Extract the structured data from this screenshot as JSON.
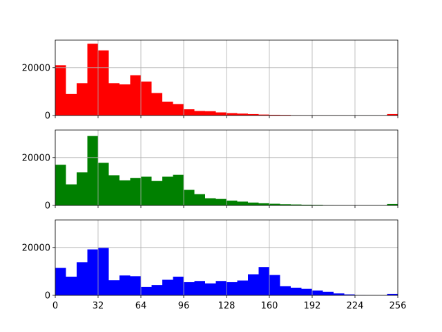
{
  "chart_data": [
    {
      "type": "bar",
      "title": "",
      "xlabel": "",
      "ylabel": "",
      "xlim": [
        0,
        256
      ],
      "ylim": [
        0,
        31500
      ],
      "grid": true,
      "xticks": [
        0,
        32,
        64,
        96,
        128,
        160,
        192,
        224,
        256
      ],
      "show_xtick_labels": false,
      "yticks": [
        0,
        20000
      ],
      "ytick_labels": [
        "0",
        "20000"
      ],
      "series": [
        {
          "color": "#ff0000",
          "bin_width": 8,
          "x": [
            0,
            8,
            16,
            24,
            32,
            40,
            48,
            56,
            64,
            72,
            80,
            88,
            96,
            104,
            112,
            120,
            128,
            136,
            144,
            152,
            160,
            168,
            176,
            184,
            192,
            200,
            208,
            216,
            224,
            232,
            240,
            248
          ],
          "values": [
            21000,
            9000,
            13500,
            30000,
            27200,
            13500,
            13000,
            16800,
            14200,
            9400,
            5800,
            4800,
            2600,
            1900,
            1800,
            1300,
            1000,
            800,
            600,
            400,
            300,
            250,
            150,
            100,
            100,
            80,
            80,
            50,
            50,
            50,
            50,
            600
          ]
        }
      ]
    },
    {
      "type": "bar",
      "title": "",
      "xlabel": "",
      "ylabel": "",
      "xlim": [
        0,
        256
      ],
      "ylim": [
        0,
        31500
      ],
      "grid": true,
      "xticks": [
        0,
        32,
        64,
        96,
        128,
        160,
        192,
        224,
        256
      ],
      "show_xtick_labels": false,
      "yticks": [
        0,
        20000
      ],
      "ytick_labels": [
        "0",
        "20000"
      ],
      "series": [
        {
          "color": "#008000",
          "bin_width": 8,
          "x": [
            0,
            8,
            16,
            24,
            32,
            40,
            48,
            56,
            64,
            72,
            80,
            88,
            96,
            104,
            112,
            120,
            128,
            136,
            144,
            152,
            160,
            168,
            176,
            184,
            192,
            200,
            208,
            216,
            224,
            232,
            240,
            248
          ],
          "values": [
            17000,
            8800,
            13800,
            29000,
            17800,
            12600,
            10500,
            11500,
            12000,
            10200,
            12000,
            12800,
            6500,
            4700,
            3000,
            2700,
            2000,
            1600,
            1200,
            900,
            700,
            500,
            400,
            300,
            250,
            150,
            100,
            80,
            60,
            60,
            60,
            600
          ]
        }
      ]
    },
    {
      "type": "bar",
      "title": "",
      "xlabel": "",
      "ylabel": "",
      "xlim": [
        0,
        256
      ],
      "ylim": [
        0,
        31500
      ],
      "grid": true,
      "xticks": [
        0,
        32,
        64,
        96,
        128,
        160,
        192,
        224,
        256
      ],
      "show_xtick_labels": true,
      "xtick_labels": [
        "0",
        "32",
        "64",
        "96",
        "128",
        "160",
        "192",
        "224",
        "256"
      ],
      "yticks": [
        0,
        20000
      ],
      "ytick_labels": [
        "0",
        "20000"
      ],
      "series": [
        {
          "color": "#0000ff",
          "bin_width": 8,
          "x": [
            0,
            8,
            16,
            24,
            32,
            40,
            48,
            56,
            64,
            72,
            80,
            88,
            96,
            104,
            112,
            120,
            128,
            136,
            144,
            152,
            160,
            168,
            176,
            184,
            192,
            200,
            208,
            216,
            224,
            232,
            240,
            248
          ],
          "values": [
            11500,
            7800,
            13800,
            19200,
            19800,
            6300,
            8300,
            8000,
            3500,
            4300,
            6500,
            7800,
            5500,
            6000,
            5000,
            6000,
            5500,
            6200,
            8800,
            11800,
            8500,
            3800,
            3200,
            2700,
            2000,
            1500,
            800,
            400,
            150,
            100,
            80,
            600
          ]
        }
      ]
    }
  ]
}
